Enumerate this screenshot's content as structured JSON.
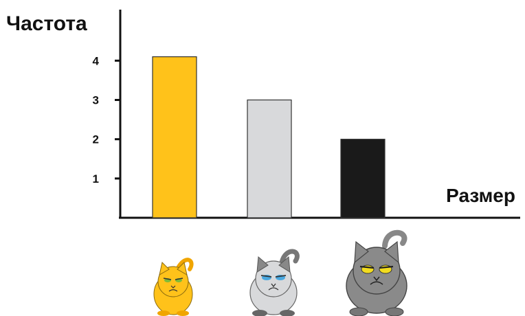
{
  "chart_data": {
    "type": "bar",
    "ylabel": "Частота",
    "xlabel": "Размер",
    "ylim": [
      0,
      5.3
    ],
    "yticks": [
      1,
      2,
      3,
      4
    ],
    "grid": false,
    "categories": [
      "",
      "",
      ""
    ],
    "values": [
      4.1,
      3.0,
      2.0
    ],
    "colors": [
      "#FFC21A",
      "#D8D9DB",
      "#1A1A1A"
    ],
    "category_icons": [
      "small-orange-cat-icon",
      "medium-white-cat-icon",
      "large-gray-cat-icon"
    ]
  }
}
